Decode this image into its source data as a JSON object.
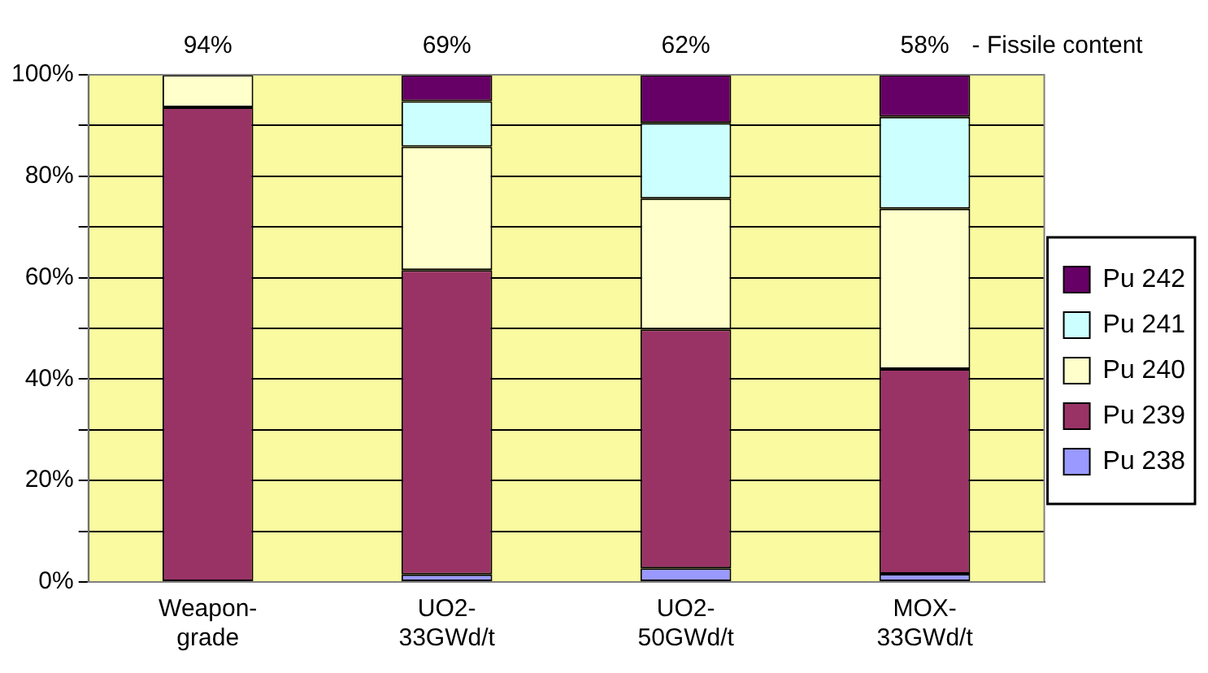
{
  "chart_data": {
    "type": "bar",
    "stacked": true,
    "categories": [
      "Weapon-grade",
      "UO2-33GWd/t",
      "UO2-50GWd/t",
      "MOX-33GWd/t"
    ],
    "series": [
      {
        "name": "Pu 238",
        "color": "#9999ff",
        "values": [
          null,
          1.5,
          2.7,
          1.6
        ]
      },
      {
        "name": "Pu 239",
        "color": "#993366",
        "values": [
          93.6,
          60,
          47.1,
          40.4
        ]
      },
      {
        "name": "Pu 240",
        "color": "#ffffcc",
        "values": [
          6.4,
          24.3,
          25.8,
          31.6
        ]
      },
      {
        "name": "Pu 241",
        "color": "#ccffff",
        "values": [
          null,
          9,
          14.9,
          18.1
        ]
      },
      {
        "name": "Pu 242",
        "color": "#660066",
        "values": [
          null,
          5.2,
          9.5,
          8.3
        ]
      }
    ],
    "ylim": [
      0,
      100
    ],
    "yticks": [
      {
        "value": 0,
        "label": "0%"
      },
      {
        "value": 10,
        "label": null
      },
      {
        "value": 20,
        "label": "20%"
      },
      {
        "value": 30,
        "label": null
      },
      {
        "value": 40,
        "label": "40%"
      },
      {
        "value": 50,
        "label": null
      },
      {
        "value": 60,
        "label": "60%"
      },
      {
        "value": 70,
        "label": null
      },
      {
        "value": 80,
        "label": "80%"
      },
      {
        "value": 90,
        "label": null
      },
      {
        "value": 100,
        "label": "100%"
      }
    ],
    "grid": "y",
    "legend": "right",
    "annotations": [
      "94%",
      "69%",
      "62%",
      "58%",
      "- Fissile content"
    ]
  }
}
